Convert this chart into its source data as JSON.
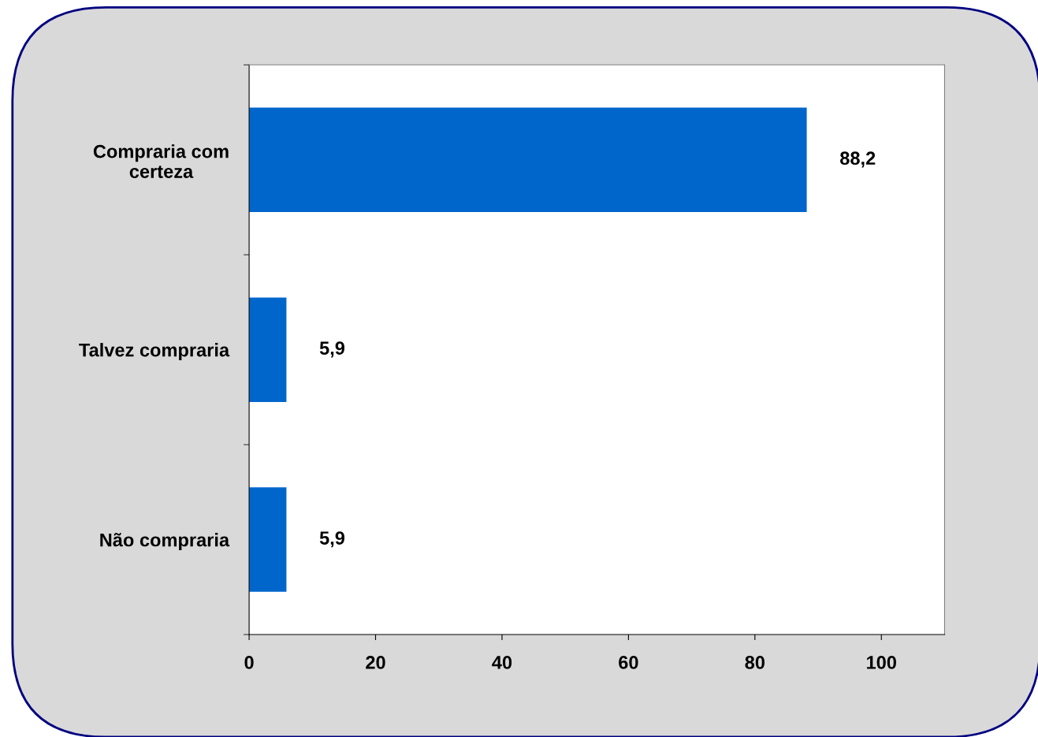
{
  "chart_data": {
    "type": "bar",
    "orientation": "horizontal",
    "categories": [
      "Compraria com\ncerteza",
      "Talvez compraria",
      "Não compraria"
    ],
    "values": [
      88.2,
      5.9,
      5.9
    ],
    "value_labels": [
      "88,2",
      "5,9",
      "5,9"
    ],
    "color": "#0066cc",
    "xlim": [
      0,
      110
    ],
    "xticks": [
      0,
      20,
      40,
      60,
      80,
      100
    ],
    "grid": false
  }
}
